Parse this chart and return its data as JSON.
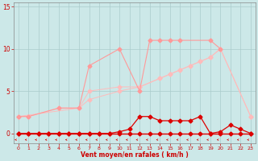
{
  "x": [
    0,
    1,
    2,
    3,
    4,
    5,
    6,
    7,
    8,
    9,
    10,
    11,
    12,
    13,
    14,
    15,
    16,
    17,
    18,
    19,
    20,
    21,
    22,
    23
  ],
  "background_color": "#cce8e8",
  "grid_color": "#aacccc",
  "line_color_medium": "#ff9999",
  "line_color_light": "#ffbbbb",
  "line_color_dark": "#dd0000",
  "xlabel": "Vent moyen/en rafales ( km/h )",
  "ylim": [
    -1.2,
    15.5
  ],
  "xlim": [
    -0.5,
    23.5
  ],
  "yticks": [
    0,
    5,
    10,
    15
  ],
  "xticks": [
    0,
    1,
    2,
    3,
    4,
    5,
    6,
    7,
    8,
    9,
    10,
    11,
    12,
    13,
    14,
    15,
    16,
    17,
    18,
    19,
    20,
    21,
    22,
    23
  ],
  "line1_x": [
    0,
    1,
    4,
    6,
    7,
    10,
    12,
    13,
    14,
    15,
    16,
    19,
    20
  ],
  "line1_y": [
    2,
    2,
    3,
    3,
    8,
    10,
    5,
    11,
    11,
    11,
    11,
    11,
    10
  ],
  "line2_x": [
    0,
    6,
    7,
    10,
    12,
    14,
    15,
    16,
    17,
    18,
    19,
    20,
    23
  ],
  "line2_y": [
    2,
    3,
    4,
    5,
    5.5,
    6.5,
    7,
    7.5,
    8,
    8.5,
    9,
    10,
    2
  ],
  "line3_x": [
    0,
    1,
    4,
    6,
    7,
    10,
    12,
    14,
    15,
    16,
    17,
    18,
    19,
    20,
    23
  ],
  "line3_y": [
    2,
    2,
    3,
    3,
    5,
    5.5,
    5.5,
    6.5,
    7,
    7.5,
    8,
    8.5,
    9,
    10,
    2
  ],
  "dark1_x": [
    0,
    1,
    2,
    3,
    4,
    5,
    6,
    7,
    8,
    9,
    10,
    11,
    12,
    13,
    14,
    15,
    16,
    17,
    18,
    19,
    20,
    21,
    22,
    23
  ],
  "dark1_y": [
    0,
    0,
    0,
    0,
    0,
    0,
    0,
    0,
    0,
    0,
    0.2,
    0.5,
    2,
    2,
    1.5,
    1.5,
    1.5,
    1.5,
    2,
    0,
    0.2,
    1,
    0.5,
    0
  ],
  "dark2_y": [
    0,
    0,
    0,
    0,
    0,
    0,
    0,
    0,
    0,
    0,
    0,
    0,
    0,
    0,
    0,
    0,
    0,
    0,
    0,
    0,
    0,
    0,
    0,
    0
  ]
}
